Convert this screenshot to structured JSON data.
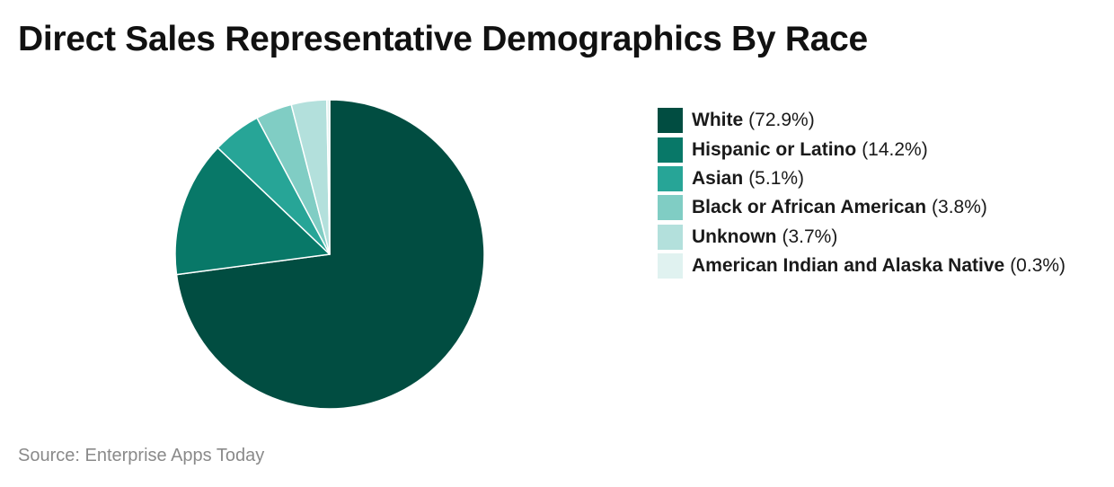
{
  "title": "Direct Sales Representative Demographics By Race",
  "source": "Source: Enterprise Apps Today",
  "chart_data": {
    "type": "pie",
    "title": "Direct Sales Representative Demographics By Race",
    "legend_position": "right",
    "slices": [
      {
        "label": "White",
        "value": 72.9,
        "display": "(72.9%)",
        "color": "#014d41"
      },
      {
        "label": "Hispanic or Latino",
        "value": 14.2,
        "display": "(14.2%)",
        "color": "#087868"
      },
      {
        "label": "Asian",
        "value": 5.1,
        "display": "(5.1%)",
        "color": "#27a597"
      },
      {
        "label": "Black or African American",
        "value": 3.8,
        "display": "(3.8%)",
        "color": "#80cdc4"
      },
      {
        "label": "Unknown",
        "value": 3.7,
        "display": "(3.7%)",
        "color": "#b3e0dc"
      },
      {
        "label": "American Indian and Alaska Native",
        "value": 0.3,
        "display": "(0.3%)",
        "color": "#e0f2f0"
      }
    ]
  }
}
